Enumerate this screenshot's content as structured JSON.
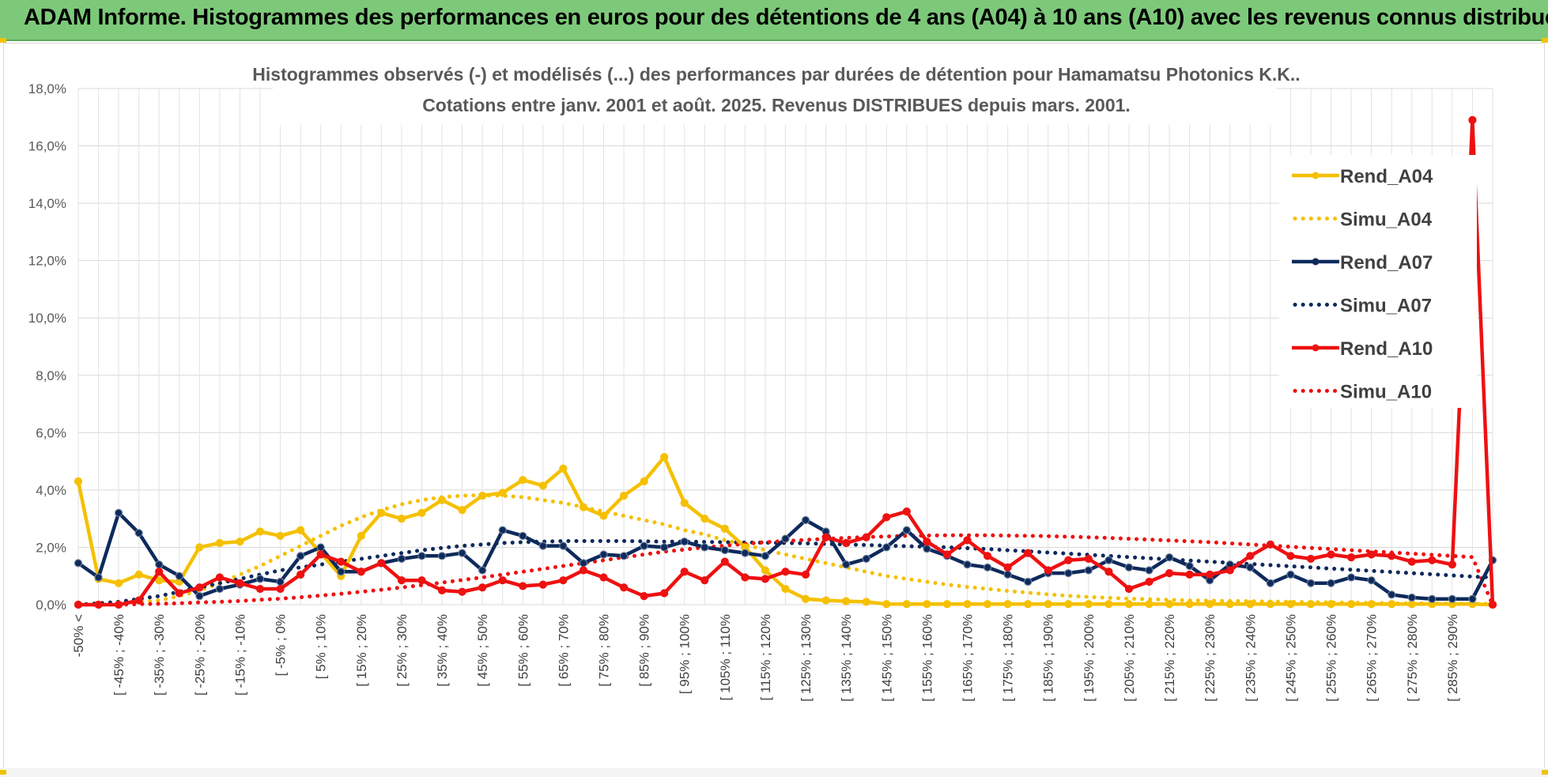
{
  "header": {
    "title": "ADAM Informe. Histogrammes des performances en euros pour des détentions de 4 ans (A04) à 10 ans (A10) avec les revenus connus distribués"
  },
  "chart_data": {
    "type": "line",
    "title": "Histogrammes observés (-) et modélisés (...) des performances par durées de détention pour Hamamatsu Photonics K.K..",
    "subtitle": "Cotations entre janv. 2001 et août. 2025. Revenus DISTRIBUES depuis mars. 2001.",
    "xlabel": "",
    "ylabel": "",
    "ylim": [
      0,
      18
    ],
    "yticks": [
      "0,0%",
      "2,0%",
      "4,0%",
      "6,0%",
      "8,0%",
      "10,0%",
      "12,0%",
      "14,0%",
      "16,0%",
      "18,0%"
    ],
    "grid": true,
    "legend_position": "right",
    "n_points": 71,
    "x_labels": [
      "-50% <",
      "[ -45% ; -40%",
      "[ -35% ; -30%",
      "[ -25% ; -20%",
      "[ -15% ; -10%",
      "[ -5% ; 0%",
      "[ 5% ; 10%",
      "[ 15% ; 20%",
      "[ 25% ; 30%",
      "[ 35% ; 40%",
      "[ 45% ; 50%",
      "[ 55% ; 60%",
      "[ 65% ; 70%",
      "[ 75% ; 80%",
      "[ 85% ; 90%",
      "[ 95% ; 100%",
      "[ 105% ; 110%",
      "[ 115% ; 120%",
      "[ 125% ; 130%",
      "[ 135% ; 140%",
      "[ 145% ; 150%",
      "[ 155% ; 160%",
      "[ 165% ; 170%",
      "[ 175% ; 180%",
      "[ 185% ; 190%",
      "[ 195% ; 200%",
      "[ 205% ; 210%",
      "[ 215% ; 220%",
      "[ 225% ; 230%",
      "[ 235% ; 240%",
      "[ 245% ; 250%",
      "[ 255% ; 260%",
      "[ 265% ; 270%",
      "[ 275% ; 280%",
      "[ 285% ; 290%"
    ],
    "series": [
      {
        "name": "Rend_A04",
        "style": "solid",
        "color": "#f5c000",
        "values": [
          4.3,
          0.9,
          0.75,
          1.05,
          0.85,
          0.8,
          2.0,
          2.15,
          2.2,
          2.55,
          2.4,
          2.6,
          1.8,
          1.0,
          2.4,
          3.2,
          3.0,
          3.2,
          3.65,
          3.3,
          3.8,
          3.9,
          4.35,
          4.15,
          4.75,
          3.4,
          3.1,
          3.8,
          4.3,
          5.15,
          3.55,
          3.0,
          2.65,
          2.0,
          1.2,
          0.55,
          0.2,
          0.15,
          0.12,
          0.1,
          0.02,
          0.02,
          0.02,
          0.02,
          0.02,
          0.02,
          0.02,
          0.02,
          0.02,
          0.02,
          0.02,
          0.02,
          0.02,
          0.02,
          0.02,
          0.02,
          0.02,
          0.02,
          0.02,
          0.02,
          0.02,
          0.02,
          0.02,
          0.02,
          0.02,
          0.02,
          0.02,
          0.02,
          0.02,
          0.02,
          0.0
        ]
      },
      {
        "name": "Simu_A04",
        "style": "dotted",
        "color": "#f5c000",
        "values": [
          0.0,
          0.0,
          0.02,
          0.08,
          0.15,
          0.3,
          0.5,
          0.75,
          1.05,
          1.35,
          1.7,
          2.05,
          2.4,
          2.75,
          3.05,
          3.3,
          3.5,
          3.65,
          3.75,
          3.8,
          3.82,
          3.8,
          3.75,
          3.65,
          3.55,
          3.4,
          3.25,
          3.1,
          2.95,
          2.8,
          2.6,
          2.45,
          2.25,
          2.1,
          1.9,
          1.75,
          1.6,
          1.45,
          1.3,
          1.15,
          1.0,
          0.9,
          0.8,
          0.7,
          0.62,
          0.55,
          0.48,
          0.42,
          0.36,
          0.31,
          0.27,
          0.24,
          0.21,
          0.19,
          0.17,
          0.15,
          0.14,
          0.13,
          0.12,
          0.11,
          0.1,
          0.09,
          0.08,
          0.07,
          0.06,
          0.05,
          0.05,
          0.04,
          0.04,
          0.03,
          0.03
        ]
      },
      {
        "name": "Rend_A07",
        "style": "solid",
        "color": "#0e2a5c",
        "values": [
          1.45,
          0.95,
          3.2,
          2.5,
          1.4,
          1.0,
          0.3,
          0.55,
          0.7,
          0.9,
          0.8,
          1.7,
          2.0,
          1.15,
          1.15,
          1.45,
          1.6,
          1.7,
          1.7,
          1.8,
          1.2,
          2.6,
          2.4,
          2.05,
          2.05,
          1.45,
          1.75,
          1.7,
          2.05,
          2.0,
          2.2,
          2.0,
          1.9,
          1.8,
          1.7,
          2.3,
          2.95,
          2.55,
          1.4,
          1.6,
          2.0,
          2.6,
          1.95,
          1.7,
          1.4,
          1.3,
          1.05,
          0.8,
          1.1,
          1.1,
          1.2,
          1.55,
          1.3,
          1.2,
          1.65,
          1.35,
          0.85,
          1.4,
          1.3,
          0.75,
          1.05,
          0.75,
          0.75,
          0.95,
          0.85,
          0.35,
          0.25,
          0.2,
          0.2,
          0.2,
          1.55
        ]
      },
      {
        "name": "Simu_A07",
        "style": "dotted",
        "color": "#0e2a5c",
        "values": [
          0.0,
          0.05,
          0.1,
          0.2,
          0.3,
          0.45,
          0.6,
          0.75,
          0.9,
          1.05,
          1.2,
          1.3,
          1.4,
          1.5,
          1.6,
          1.7,
          1.8,
          1.9,
          1.98,
          2.05,
          2.1,
          2.15,
          2.18,
          2.2,
          2.22,
          2.22,
          2.22,
          2.22,
          2.21,
          2.2,
          2.2,
          2.19,
          2.18,
          2.17,
          2.16,
          2.15,
          2.14,
          2.12,
          2.1,
          2.08,
          2.06,
          2.04,
          2.02,
          2.0,
          1.97,
          1.94,
          1.9,
          1.86,
          1.82,
          1.78,
          1.74,
          1.7,
          1.66,
          1.62,
          1.58,
          1.54,
          1.5,
          1.46,
          1.42,
          1.38,
          1.34,
          1.3,
          1.26,
          1.22,
          1.18,
          1.14,
          1.1,
          1.06,
          1.02,
          0.98,
          0.95
        ]
      },
      {
        "name": "Rend_A10",
        "style": "solid",
        "color": "#ee1111",
        "values": [
          0.0,
          0.0,
          0.0,
          0.15,
          1.15,
          0.4,
          0.6,
          0.95,
          0.75,
          0.55,
          0.55,
          1.05,
          1.75,
          1.5,
          1.15,
          1.45,
          0.85,
          0.85,
          0.5,
          0.45,
          0.6,
          0.85,
          0.65,
          0.7,
          0.85,
          1.2,
          0.95,
          0.6,
          0.3,
          0.4,
          1.15,
          0.85,
          1.5,
          0.95,
          0.9,
          1.15,
          1.05,
          2.35,
          2.15,
          2.35,
          3.05,
          3.25,
          2.2,
          1.75,
          2.25,
          1.7,
          1.3,
          1.8,
          1.2,
          1.55,
          1.6,
          1.15,
          0.55,
          0.8,
          1.1,
          1.05,
          1.05,
          1.2,
          1.7,
          2.1,
          1.7,
          1.6,
          1.75,
          1.65,
          1.75,
          1.7,
          1.5,
          1.55,
          1.4,
          16.9,
          0.0
        ]
      },
      {
        "name": "Simu_A10",
        "style": "dotted",
        "color": "#ee1111",
        "values": [
          0.0,
          0.0,
          0.0,
          0.02,
          0.03,
          0.05,
          0.08,
          0.1,
          0.13,
          0.17,
          0.21,
          0.26,
          0.32,
          0.38,
          0.45,
          0.52,
          0.6,
          0.68,
          0.77,
          0.86,
          0.95,
          1.05,
          1.15,
          1.25,
          1.35,
          1.45,
          1.55,
          1.65,
          1.75,
          1.85,
          1.92,
          2.0,
          2.06,
          2.12,
          2.18,
          2.22,
          2.26,
          2.3,
          2.33,
          2.36,
          2.38,
          2.4,
          2.41,
          2.42,
          2.42,
          2.42,
          2.41,
          2.4,
          2.39,
          2.37,
          2.35,
          2.33,
          2.3,
          2.27,
          2.24,
          2.21,
          2.18,
          2.14,
          2.1,
          2.06,
          2.02,
          1.98,
          1.94,
          1.9,
          1.86,
          1.82,
          1.78,
          1.74,
          1.7,
          1.66,
          0.0
        ]
      }
    ]
  }
}
